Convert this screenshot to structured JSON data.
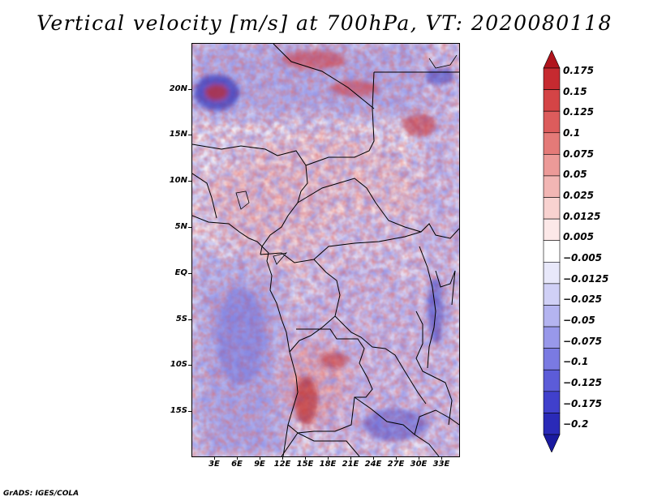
{
  "title": "Vertical velocity [m/s] at 700hPa, VT: 2020080118",
  "credit": "GrADS: IGES/COLA",
  "map": {
    "lon_range": [
      0,
      35.5
    ],
    "lat_range": [
      -20,
      25
    ],
    "lat_ticks": [
      {
        "lat": 20,
        "label": "20N"
      },
      {
        "lat": 15,
        "label": "15N"
      },
      {
        "lat": 10,
        "label": "10N"
      },
      {
        "lat": 5,
        "label": "5N"
      },
      {
        "lat": 0,
        "label": "EQ"
      },
      {
        "lat": -5,
        "label": "5S"
      },
      {
        "lat": -10,
        "label": "10S"
      },
      {
        "lat": -15,
        "label": "15S"
      }
    ],
    "lon_ticks": [
      {
        "lon": 3,
        "label": "3E"
      },
      {
        "lon": 6,
        "label": "6E"
      },
      {
        "lon": 9,
        "label": "9E"
      },
      {
        "lon": 12,
        "label": "12E"
      },
      {
        "lon": 15,
        "label": "15E"
      },
      {
        "lon": 18,
        "label": "18E"
      },
      {
        "lon": 21,
        "label": "21E"
      },
      {
        "lon": 24,
        "label": "24E"
      },
      {
        "lon": 27,
        "label": "27E"
      },
      {
        "lon": 30,
        "label": "30E"
      },
      {
        "lon": 33,
        "label": "33E"
      }
    ]
  },
  "colorbar": {
    "levels": [
      "0.175",
      "0.15",
      "0.125",
      "0.1",
      "0.075",
      "0.05",
      "0.025",
      "0.0125",
      "0.005",
      "−0.005",
      "−0.0125",
      "−0.025",
      "−0.05",
      "−0.075",
      "−0.1",
      "−0.125",
      "−0.175",
      "−0.2"
    ],
    "colors": [
      "#b0141c",
      "#c62a30",
      "#d44446",
      "#dc5c5c",
      "#e47a78",
      "#ec9a98",
      "#f2b6b4",
      "#f8d2d0",
      "#fce8e8",
      "#ffffff",
      "#e8e8fa",
      "#d0d0f6",
      "#b4b4f0",
      "#9898ea",
      "#7a7ae2",
      "#5c5cd8",
      "#4040cc",
      "#2a2ab8",
      "#1a1aa0"
    ]
  }
}
